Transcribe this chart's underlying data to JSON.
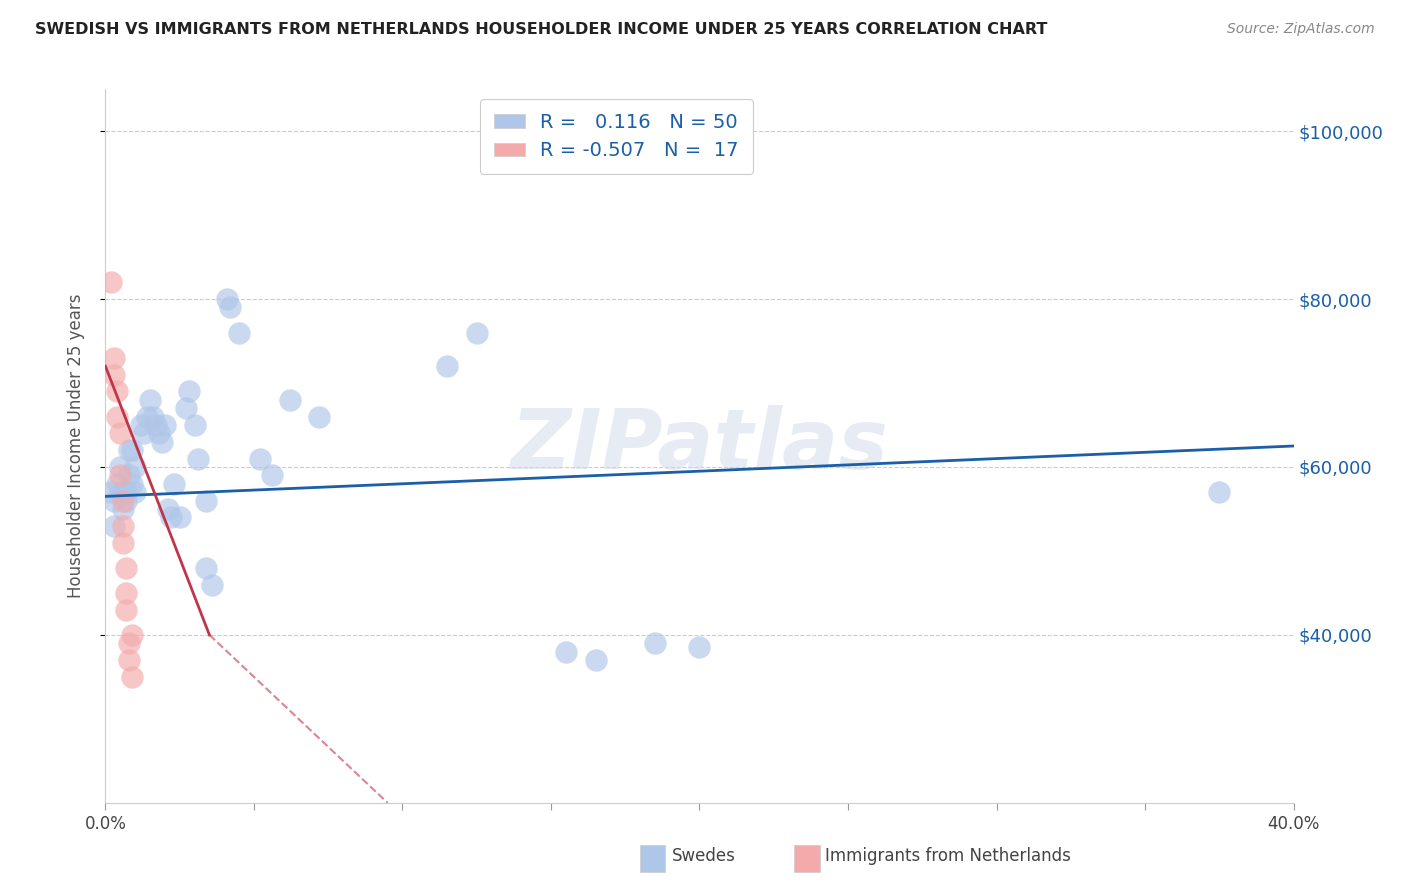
{
  "title": "SWEDISH VS IMMIGRANTS FROM NETHERLANDS HOUSEHOLDER INCOME UNDER 25 YEARS CORRELATION CHART",
  "source": "Source: ZipAtlas.com",
  "ylabel": "Householder Income Under 25 years",
  "xlim": [
    0.0,
    0.4
  ],
  "ylim": [
    20000,
    105000
  ],
  "yticks": [
    40000,
    60000,
    80000,
    100000
  ],
  "ytick_labels": [
    "$40,000",
    "$60,000",
    "$80,000",
    "$100,000"
  ],
  "watermark": "ZIPatlas",
  "blue_color": "#aec6e8",
  "pink_color": "#f4aaaa",
  "blue_line_color": "#1a5fa8",
  "pink_line_color": "#c0354a",
  "blue_scatter": [
    [
      0.002,
      57000
    ],
    [
      0.003,
      56000
    ],
    [
      0.003,
      53000
    ],
    [
      0.004,
      58000
    ],
    [
      0.005,
      60000
    ],
    [
      0.005,
      57000
    ],
    [
      0.006,
      57000
    ],
    [
      0.006,
      55000
    ],
    [
      0.007,
      57000
    ],
    [
      0.007,
      56000
    ],
    [
      0.008,
      62000
    ],
    [
      0.008,
      59000
    ],
    [
      0.009,
      62000
    ],
    [
      0.009,
      58000
    ],
    [
      0.01,
      60000
    ],
    [
      0.01,
      57000
    ],
    [
      0.012,
      65000
    ],
    [
      0.013,
      64000
    ],
    [
      0.014,
      66000
    ],
    [
      0.015,
      68000
    ],
    [
      0.016,
      66000
    ],
    [
      0.017,
      65000
    ],
    [
      0.018,
      64000
    ],
    [
      0.019,
      63000
    ],
    [
      0.02,
      65000
    ],
    [
      0.021,
      55000
    ],
    [
      0.022,
      54000
    ],
    [
      0.023,
      58000
    ],
    [
      0.025,
      54000
    ],
    [
      0.027,
      67000
    ],
    [
      0.028,
      69000
    ],
    [
      0.03,
      65000
    ],
    [
      0.031,
      61000
    ],
    [
      0.034,
      56000
    ],
    [
      0.034,
      48000
    ],
    [
      0.036,
      46000
    ],
    [
      0.041,
      80000
    ],
    [
      0.042,
      79000
    ],
    [
      0.045,
      76000
    ],
    [
      0.052,
      61000
    ],
    [
      0.056,
      59000
    ],
    [
      0.062,
      68000
    ],
    [
      0.072,
      66000
    ],
    [
      0.115,
      72000
    ],
    [
      0.125,
      76000
    ],
    [
      0.155,
      38000
    ],
    [
      0.165,
      37000
    ],
    [
      0.375,
      57000
    ],
    [
      0.2,
      38500
    ],
    [
      0.185,
      39000
    ]
  ],
  "pink_scatter": [
    [
      0.002,
      82000
    ],
    [
      0.003,
      73000
    ],
    [
      0.003,
      71000
    ],
    [
      0.004,
      69000
    ],
    [
      0.004,
      66000
    ],
    [
      0.005,
      64000
    ],
    [
      0.005,
      59000
    ],
    [
      0.006,
      56000
    ],
    [
      0.006,
      53000
    ],
    [
      0.006,
      51000
    ],
    [
      0.007,
      48000
    ],
    [
      0.007,
      45000
    ],
    [
      0.007,
      43000
    ],
    [
      0.008,
      39000
    ],
    [
      0.008,
      37000
    ],
    [
      0.009,
      40000
    ],
    [
      0.009,
      35000
    ]
  ],
  "blue_line": [
    [
      0.0,
      56500
    ],
    [
      0.4,
      62500
    ]
  ],
  "pink_line_solid": [
    [
      0.0,
      72000
    ],
    [
      0.035,
      40000
    ]
  ],
  "pink_line_dashed": [
    [
      0.035,
      40000
    ],
    [
      0.095,
      20000
    ]
  ]
}
